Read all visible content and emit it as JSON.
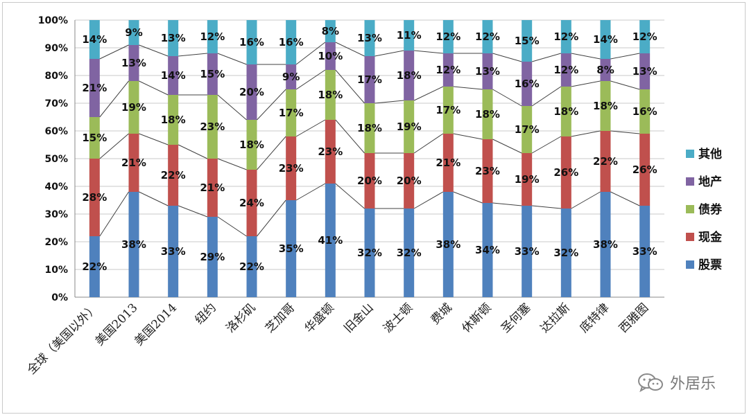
{
  "chart_data": {
    "type": "bar",
    "stacked": true,
    "percent": true,
    "title": "",
    "xlabel": "",
    "ylabel": "",
    "ylim": [
      0,
      100
    ],
    "y_ticks": [
      "0%",
      "10%",
      "20%",
      "30%",
      "40%",
      "50%",
      "60%",
      "70%",
      "80%",
      "90%",
      "100%"
    ],
    "grid": true,
    "legend_position": "right",
    "categories": [
      "全球（美国以外）",
      "美国2013",
      "美国2014",
      "纽约",
      "洛杉矶",
      "芝加哥",
      "华盛顿",
      "旧金山",
      "波士顿",
      "费城",
      "休斯顿",
      "圣何塞",
      "达拉斯",
      "底特律",
      "西雅图"
    ],
    "series": [
      {
        "name": "股票",
        "color": "#4f81bd",
        "values": [
          22,
          38,
          33,
          29,
          22,
          35,
          41,
          32,
          32,
          38,
          34,
          33,
          32,
          38,
          33
        ]
      },
      {
        "name": "现金",
        "color": "#c0504d",
        "values": [
          28,
          21,
          22,
          21,
          24,
          23,
          23,
          20,
          20,
          21,
          23,
          19,
          26,
          22,
          26
        ]
      },
      {
        "name": "债券",
        "color": "#9bbb59",
        "values": [
          15,
          19,
          18,
          23,
          18,
          17,
          18,
          18,
          19,
          17,
          18,
          17,
          18,
          18,
          16
        ]
      },
      {
        "name": "地产",
        "color": "#8064a2",
        "values": [
          21,
          13,
          14,
          15,
          20,
          9,
          10,
          17,
          18,
          12,
          13,
          16,
          12,
          8,
          13
        ]
      },
      {
        "name": "其他",
        "color": "#4bacc6",
        "values": [
          14,
          9,
          13,
          12,
          16,
          16,
          8,
          13,
          11,
          12,
          12,
          15,
          12,
          14,
          12
        ]
      }
    ]
  },
  "watermark": {
    "text": "外居乐",
    "icon": "wechat-icon"
  }
}
